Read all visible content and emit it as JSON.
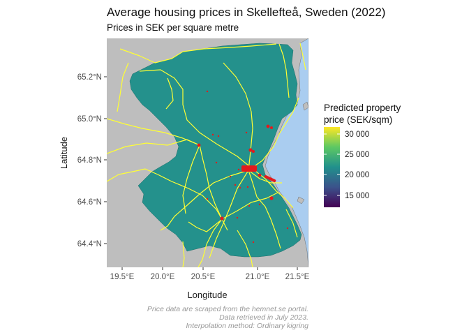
{
  "title": "Average housing prices in Skellefteå, Sweden (2022)",
  "subtitle": "Prices in SEK per square metre",
  "axes": {
    "x_title": "Longitude",
    "y_title": "Latitude",
    "x_ticks": [
      "19.5°E",
      "20.0°E",
      "20.5°E",
      "21.0°E",
      "21.5°E"
    ],
    "y_ticks": [
      "65.2°N",
      "65.0°N",
      "64.8°N",
      "64.6°N",
      "64.4°N"
    ]
  },
  "legend": {
    "title_line1": "Predicted property",
    "title_line2": "price (SEK/sqm)",
    "labels": [
      "30 000",
      "25 000",
      "20 000",
      "15 000"
    ],
    "colormap": "viridis"
  },
  "caption": {
    "line1": "Price data are scraped from the hemnet.se portal.",
    "line2": "Data retrieved in July 2023.",
    "line3": "Interpolation method: Ordinary kigring"
  },
  "colors": {
    "land": "#bebebe",
    "sea": "#aacdf0",
    "municipality": "#24918c",
    "roads": "#ffff33",
    "points": "#e41a1c"
  }
}
